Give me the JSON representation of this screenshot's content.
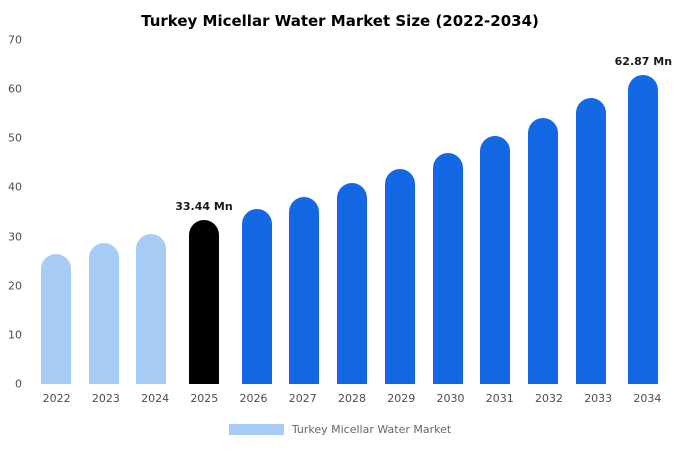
{
  "title": "Turkey Micellar Water Market Size (2022-2034)",
  "legend": {
    "label": "Turkey Micellar Water Market",
    "swatch_color": "#a6cbf5"
  },
  "palette": {
    "light_blue": "#a6cbf5",
    "primary_blue": "#1568e3",
    "highlight_black": "#000000"
  },
  "chart_data": {
    "type": "bar",
    "title": "Turkey Micellar Water Market Size (2022-2034)",
    "unit": "Mn",
    "xlabel": "",
    "ylabel": "",
    "ylim": [
      0,
      70
    ],
    "y_ticks": [
      0,
      10,
      20,
      30,
      40,
      50,
      60,
      70
    ],
    "grid": false,
    "legend_position": "bottom",
    "categories": [
      "2022",
      "2023",
      "2024",
      "2025",
      "2026",
      "2027",
      "2028",
      "2029",
      "2030",
      "2031",
      "2032",
      "2033",
      "2034"
    ],
    "values": [
      26.5,
      28.6,
      30.5,
      33.44,
      35.6,
      38.1,
      40.9,
      43.8,
      47.0,
      50.4,
      54.1,
      58.2,
      62.87
    ],
    "bar_colors": [
      "#a6cbf5",
      "#a6cbf5",
      "#a6cbf5",
      "#000000",
      "#1568e3",
      "#1568e3",
      "#1568e3",
      "#1568e3",
      "#1568e3",
      "#1568e3",
      "#1568e3",
      "#1568e3",
      "#1568e3"
    ],
    "annotations": [
      {
        "index": 3,
        "text": "33.44 Mn"
      },
      {
        "index": 12,
        "text": "62.87 Mn"
      }
    ],
    "series_name": "Turkey Micellar Water Market"
  }
}
